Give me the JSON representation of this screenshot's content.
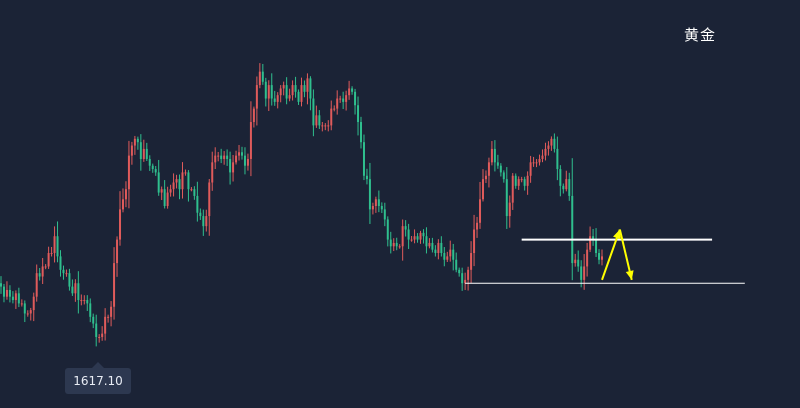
{
  "chart_data": {
    "type": "candlestick",
    "title": "黄金",
    "xlabel": "",
    "ylabel": "",
    "ylim": [
      1612,
      1718
    ],
    "grid": false,
    "colors": {
      "background": "#1b2336",
      "up": "#e05b5b",
      "down": "#2fbf8e",
      "level_lines": "#ffffff",
      "arrows": "#ffff00"
    },
    "annotations": {
      "low_marker": "1617.10"
    },
    "levels": [
      {
        "value": 1655,
        "from_index": 175,
        "to_index": 239
      },
      {
        "value": 1642,
        "from_index": 156,
        "to_index": 250
      }
    ],
    "arrows": [
      {
        "from": [
          202,
          1643
        ],
        "to": [
          208,
          1658
        ]
      },
      {
        "from": [
          208,
          1658
        ],
        "to": [
          212,
          1643
        ]
      }
    ],
    "series": [
      {
        "name": "",
        "close": [
          1641,
          1638,
          1640,
          1638,
          1637,
          1639,
          1636,
          1636,
          1633,
          1633,
          1634,
          1638,
          1645,
          1644,
          1647,
          1647,
          1651,
          1651,
          1656,
          1650,
          1646,
          1645,
          1645,
          1641,
          1639,
          1642,
          1637,
          1637,
          1637,
          1636,
          1632,
          1630,
          1626,
          1626,
          1627,
          1632,
          1632,
          1635,
          1648,
          1655,
          1664,
          1667,
          1670,
          1680,
          1683,
          1685,
          1684,
          1679,
          1682,
          1679,
          1677,
          1676,
          1675,
          1669,
          1670,
          1665,
          1669,
          1670,
          1672,
          1673,
          1670,
          1675,
          1675,
          1670,
          1670,
          1668,
          1663,
          1662,
          1659,
          1662,
          1672,
          1678,
          1680,
          1680,
          1679,
          1680,
          1679,
          1675,
          1678,
          1680,
          1681,
          1680,
          1677,
          1679,
          1690,
          1694,
          1701,
          1705,
          1702,
          1697,
          1701,
          1697,
          1696,
          1698,
          1700,
          1701,
          1697,
          1698,
          1701,
          1699,
          1696,
          1701,
          1699,
          1703,
          1697,
          1689,
          1692,
          1689,
          1689,
          1689,
          1689,
          1694,
          1694,
          1697,
          1697,
          1696,
          1698,
          1700,
          1699,
          1695,
          1690,
          1684,
          1674,
          1673,
          1664,
          1665,
          1667,
          1665,
          1664,
          1661,
          1655,
          1653,
          1654,
          1653,
          1653,
          1659,
          1658,
          1655,
          1655,
          1656,
          1655,
          1657,
          1656,
          1653,
          1654,
          1652,
          1651,
          1654,
          1651,
          1649,
          1650,
          1652,
          1649,
          1646,
          1645,
          1642,
          1643,
          1646,
          1651,
          1658,
          1660,
          1667,
          1673,
          1674,
          1678,
          1682,
          1678,
          1677,
          1675,
          1673,
          1662,
          1666,
          1674,
          1671,
          1673,
          1673,
          1671,
          1674,
          1678,
          1678,
          1678,
          1679,
          1680,
          1682,
          1683,
          1685,
          1682,
          1676,
          1671,
          1670,
          1673,
          1668,
          1648,
          1649,
          1647,
          1643,
          1647,
          1652,
          1656,
          1655,
          1651,
          1649,
          1650
        ]
      }
    ]
  }
}
